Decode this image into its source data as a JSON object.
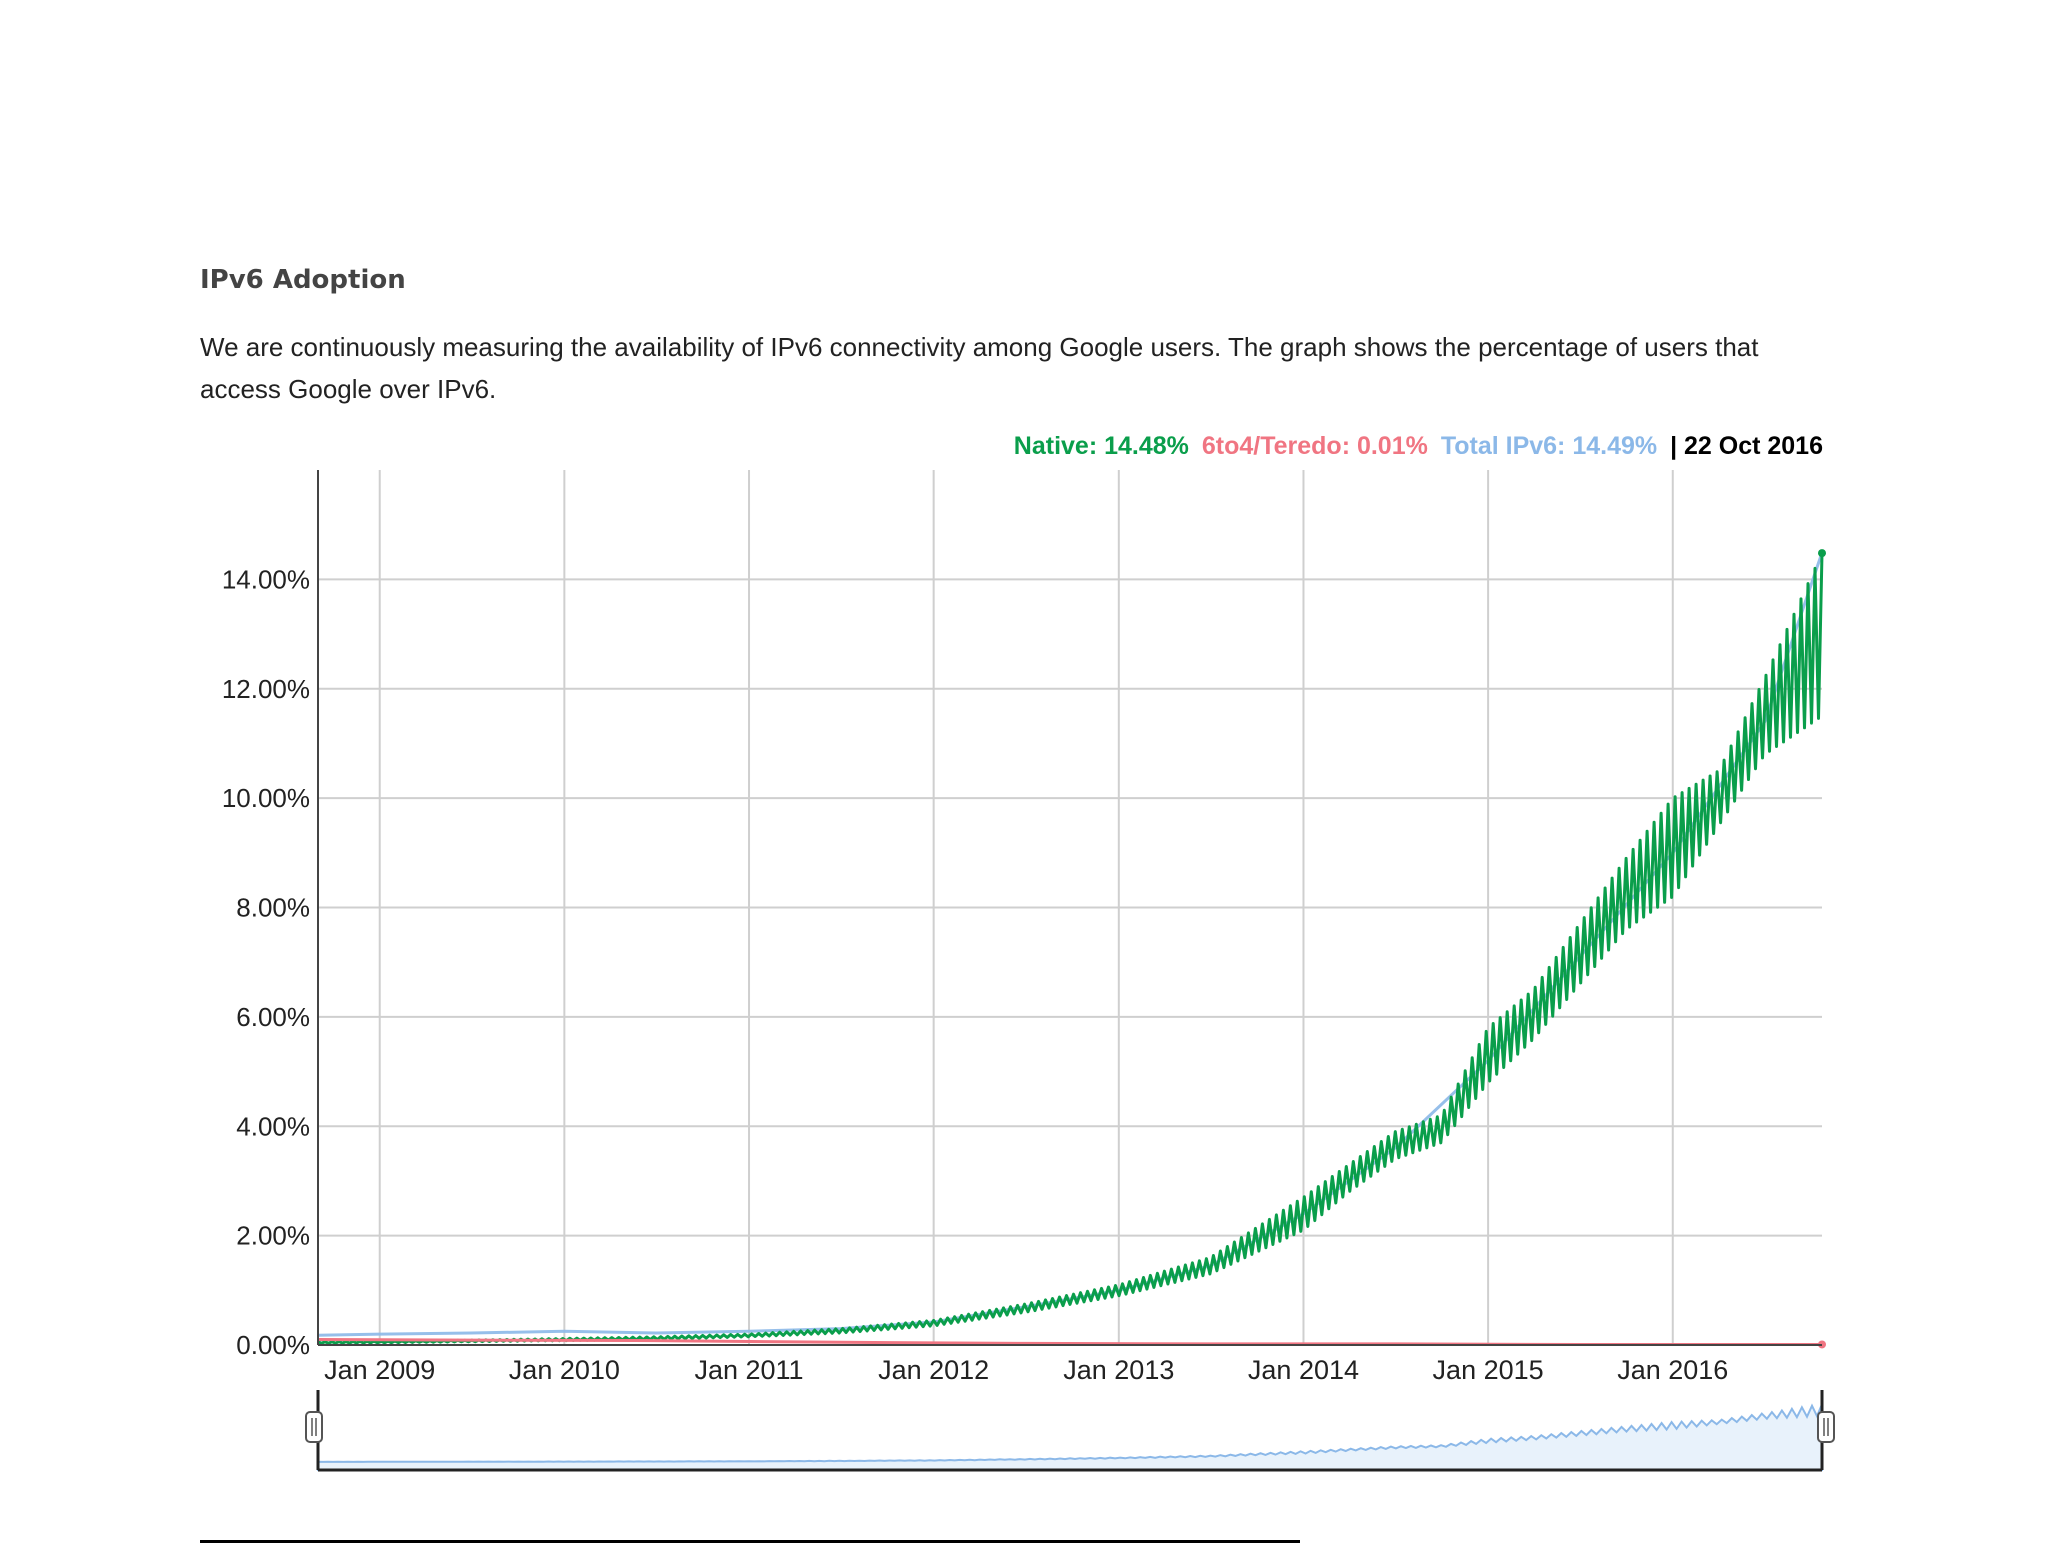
{
  "page": {
    "heading": "IPv6 Adoption",
    "description": "We are continuously measuring the availability of IPv6 connectivity among Google users. The graph shows the percentage of users that access Google over IPv6."
  },
  "legend": {
    "native": "Native: 14.48%",
    "teredo": "6to4/Teredo: 0.01%",
    "total": "Total IPv6: 14.49%",
    "date": "| 22 Oct 2016"
  },
  "colors": {
    "native": "#0a9e4b",
    "teredo": "#f07582",
    "total": "#8bb8e8",
    "grid": "#cfcfcf",
    "axis": "#444444"
  },
  "chart_data": {
    "type": "area",
    "title": "",
    "xlabel": "",
    "ylabel": "",
    "ylim": [
      0,
      16
    ],
    "xlim": [
      "2008-09-01",
      "2016-10-22"
    ],
    "y_ticks": [
      "0.00%",
      "2.00%",
      "4.00%",
      "6.00%",
      "8.00%",
      "10.00%",
      "12.00%",
      "14.00%"
    ],
    "y_tick_values": [
      0,
      2,
      4,
      6,
      8,
      10,
      12,
      14
    ],
    "x_ticks": [
      "Jan 2009",
      "Jan 2010",
      "Jan 2011",
      "Jan 2012",
      "Jan 2013",
      "Jan 2014",
      "Jan 2015",
      "Jan 2016"
    ],
    "x_tick_dates": [
      "2009-01-01",
      "2010-01-01",
      "2011-01-01",
      "2012-01-01",
      "2013-01-01",
      "2014-01-01",
      "2015-01-01",
      "2016-01-01"
    ],
    "grid": true,
    "range_selector": true,
    "series": [
      {
        "name": "Native",
        "x": [
          "2008-09-01",
          "2009-01-01",
          "2009-07-01",
          "2010-01-01",
          "2010-07-01",
          "2011-01-01",
          "2011-07-01",
          "2012-01-01",
          "2012-07-01",
          "2013-01-01",
          "2013-07-01",
          "2014-01-01",
          "2014-04-01",
          "2014-07-01",
          "2014-10-01",
          "2015-01-01",
          "2015-04-01",
          "2015-07-01",
          "2015-10-01",
          "2016-01-01",
          "2016-04-01",
          "2016-07-01",
          "2016-10-22"
        ],
        "low": [
          0.03,
          0.04,
          0.06,
          0.08,
          0.1,
          0.15,
          0.22,
          0.35,
          0.6,
          0.9,
          1.3,
          2.1,
          2.8,
          3.4,
          3.7,
          4.8,
          5.6,
          6.6,
          7.6,
          8.2,
          9.5,
          10.8,
          11.5
        ],
        "high": [
          0.06,
          0.07,
          0.09,
          0.12,
          0.15,
          0.2,
          0.3,
          0.45,
          0.75,
          1.1,
          1.6,
          2.7,
          3.3,
          3.9,
          4.2,
          5.8,
          6.5,
          7.7,
          8.9,
          10.0,
          10.5,
          12.2,
          14.48
        ]
      },
      {
        "name": "6to4/Teredo",
        "x": [
          "2008-09-01",
          "2009-07-01",
          "2010-07-01",
          "2011-07-01",
          "2012-07-01",
          "2013-07-01",
          "2014-07-01",
          "2015-07-01",
          "2016-07-01",
          "2016-10-22"
        ],
        "values": [
          0.1,
          0.09,
          0.08,
          0.05,
          0.03,
          0.02,
          0.02,
          0.01,
          0.01,
          0.01
        ]
      },
      {
        "name": "Total IPv6",
        "x": [
          "2008-09-01",
          "2009-01-01",
          "2009-07-01",
          "2010-01-01",
          "2010-07-01",
          "2011-01-01",
          "2011-07-01",
          "2012-01-01",
          "2012-07-01",
          "2013-01-01",
          "2013-07-01",
          "2014-01-01",
          "2014-07-01",
          "2015-01-01",
          "2015-07-01",
          "2016-01-01",
          "2016-07-01",
          "2016-10-22"
        ],
        "values": [
          0.18,
          0.2,
          0.22,
          0.25,
          0.22,
          0.25,
          0.3,
          0.42,
          0.7,
          1.0,
          1.45,
          2.4,
          3.6,
          5.2,
          7.1,
          9.0,
          11.4,
          14.49
        ]
      }
    ]
  }
}
